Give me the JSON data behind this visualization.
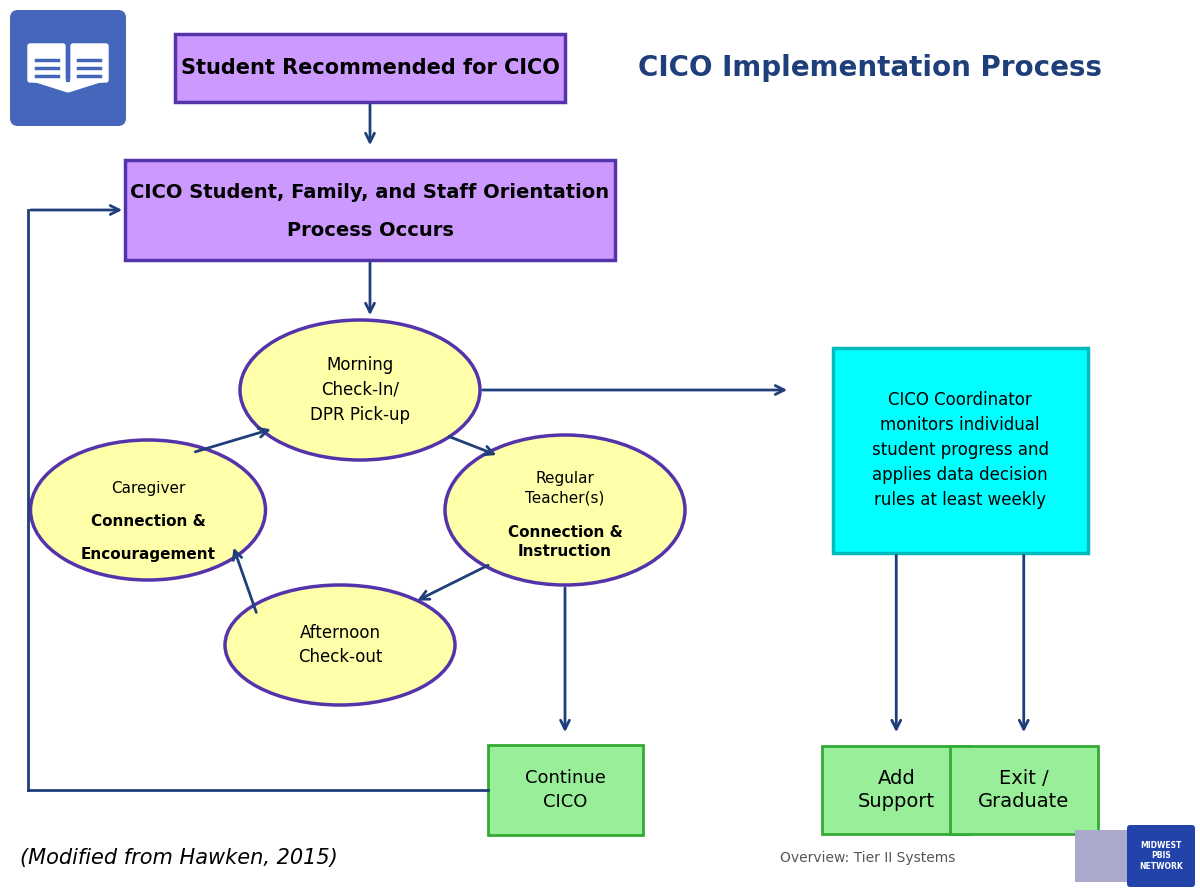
{
  "title": "CICO Implementation Process",
  "title_color": "#1F3F7A",
  "title_fontsize": 20,
  "bg_color": "#FFFFFF",
  "box1_text": "Student Recommended for CICO",
  "box1_color": "#CC99FF",
  "box1_border": "#5533AA",
  "box2_line1": "CICO Student, Family, and Staff Orientation",
  "box2_line2": "Process Occurs",
  "box2_color": "#CC99FF",
  "box2_border": "#5533AA",
  "ellipse_morning_text": "Morning\nCheck-In/\nDPR Pick-up",
  "ellipse_afternoon_text": "Afternoon\nCheck-out",
  "ellipse_color": "#FFFFAA",
  "ellipse_border": "#5533AA",
  "cyan_box_text": "CICO Coordinator\nmonitors individual\nstudent progress and\napplies data decision\nrules at least weekly",
  "cyan_box_color": "#00FFFF",
  "cyan_box_border": "#00BBBB",
  "continue_box_text": "Continue\nCICO",
  "continue_box_color": "#99EE99",
  "continue_box_border": "#33AA33",
  "add_box_text": "Add\nSupport",
  "add_box_color": "#99EE99",
  "add_box_border": "#33AA33",
  "exit_box_text": "Exit /\nGraduate",
  "exit_box_color": "#99EE99",
  "exit_box_border": "#33AA33",
  "arrow_color": "#1F3F7A",
  "footer_text": "(Modified from Hawken, 2015)",
  "footer_text2": "Overview: Tier II Systems",
  "book_icon_color": "#4466BB"
}
